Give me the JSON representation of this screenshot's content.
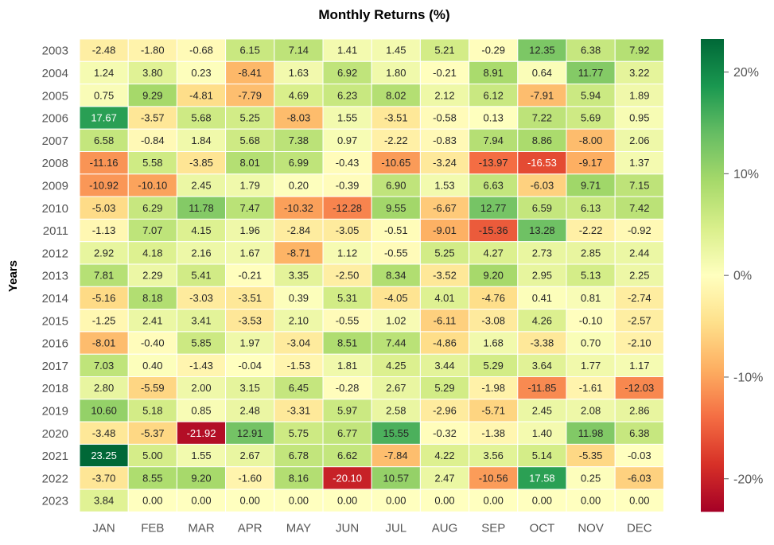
{
  "chart_data": {
    "type": "heatmap",
    "title": "Monthly Returns (%)",
    "xlabel": "",
    "ylabel": "Years",
    "columns": [
      "JAN",
      "FEB",
      "MAR",
      "APR",
      "MAY",
      "JUN",
      "JUL",
      "AUG",
      "SEP",
      "OCT",
      "NOV",
      "DEC"
    ],
    "rows": [
      "2003",
      "2004",
      "2005",
      "2006",
      "2007",
      "2008",
      "2009",
      "2010",
      "2011",
      "2012",
      "2013",
      "2014",
      "2015",
      "2016",
      "2017",
      "2018",
      "2019",
      "2020",
      "2021",
      "2022",
      "2023"
    ],
    "values": [
      [
        -2.48,
        -1.8,
        -0.68,
        6.15,
        7.14,
        1.41,
        1.45,
        5.21,
        -0.29,
        12.35,
        6.38,
        7.92
      ],
      [
        1.24,
        3.8,
        0.23,
        -8.41,
        1.63,
        6.92,
        1.8,
        -0.21,
        8.91,
        0.64,
        11.77,
        3.22
      ],
      [
        0.75,
        9.29,
        -4.81,
        -7.79,
        4.69,
        6.23,
        8.02,
        2.12,
        6.12,
        -7.91,
        5.94,
        1.89
      ],
      [
        17.67,
        -3.57,
        5.68,
        5.25,
        -8.03,
        1.55,
        -3.51,
        -0.58,
        0.13,
        7.22,
        5.69,
        0.95
      ],
      [
        6.58,
        -0.84,
        1.84,
        5.68,
        7.38,
        0.97,
        -2.22,
        -0.83,
        7.94,
        8.86,
        -8.0,
        2.06
      ],
      [
        -11.16,
        5.58,
        -3.85,
        8.01,
        6.99,
        -0.43,
        -10.65,
        -3.24,
        -13.97,
        -16.53,
        -9.17,
        1.37
      ],
      [
        -10.92,
        -10.1,
        2.45,
        1.79,
        0.2,
        -0.39,
        6.9,
        1.53,
        6.63,
        -6.03,
        9.71,
        7.15
      ],
      [
        -5.03,
        6.29,
        11.78,
        7.47,
        -10.32,
        -12.28,
        9.55,
        -6.67,
        12.77,
        6.59,
        6.13,
        7.42
      ],
      [
        -1.13,
        7.07,
        4.15,
        1.96,
        -2.84,
        -3.05,
        -0.51,
        -9.01,
        -15.36,
        13.28,
        -2.22,
        -0.92
      ],
      [
        2.92,
        4.18,
        2.16,
        1.67,
        -8.71,
        1.12,
        -0.55,
        5.25,
        4.27,
        2.73,
        2.85,
        2.44
      ],
      [
        7.81,
        2.29,
        5.41,
        -0.21,
        3.35,
        -2.5,
        8.34,
        -3.52,
        9.2,
        2.95,
        5.13,
        2.25
      ],
      [
        -5.16,
        8.18,
        -3.03,
        -3.51,
        0.39,
        5.31,
        -4.05,
        4.01,
        -4.76,
        0.41,
        0.81,
        -2.74
      ],
      [
        -1.25,
        2.41,
        3.41,
        -3.53,
        2.1,
        -0.55,
        1.02,
        -6.11,
        -3.08,
        4.26,
        -0.1,
        -2.57
      ],
      [
        -8.01,
        -0.4,
        5.85,
        1.97,
        -3.04,
        8.51,
        7.44,
        -4.86,
        1.68,
        -3.38,
        0.7,
        -2.1
      ],
      [
        7.03,
        0.4,
        -1.43,
        -0.04,
        -1.53,
        1.81,
        4.25,
        3.44,
        5.29,
        3.64,
        1.77,
        1.17
      ],
      [
        2.8,
        -5.59,
        2.0,
        3.15,
        6.45,
        -0.28,
        2.67,
        5.29,
        -1.98,
        -11.85,
        -1.61,
        -12.03
      ],
      [
        10.6,
        5.18,
        0.85,
        2.48,
        -3.31,
        5.97,
        2.58,
        -2.96,
        -5.71,
        2.45,
        2.08,
        2.86
      ],
      [
        -3.48,
        -5.37,
        -21.92,
        12.91,
        5.75,
        6.77,
        15.55,
        -0.32,
        -1.38,
        1.4,
        11.98,
        6.38
      ],
      [
        23.25,
        5.0,
        1.55,
        2.67,
        6.78,
        6.62,
        -7.84,
        4.22,
        3.56,
        5.14,
        -5.35,
        -0.03
      ],
      [
        -3.7,
        8.55,
        9.2,
        -1.6,
        8.16,
        -20.1,
        10.57,
        2.47,
        -10.56,
        17.58,
        0.25,
        -6.03
      ],
      [
        3.84,
        0.0,
        0.0,
        0.0,
        0.0,
        0.0,
        0.0,
        0.0,
        0.0,
        0.0,
        0.0,
        0.0
      ]
    ],
    "colorscale": "RdYlGn",
    "vmin": -23.25,
    "vmax": 23.25,
    "colorbar_ticks": [
      {
        "value": 20,
        "label": "20%"
      },
      {
        "value": 10,
        "label": "10%"
      },
      {
        "value": 0,
        "label": "0%"
      },
      {
        "value": -10,
        "label": "-10%"
      },
      {
        "value": -20,
        "label": "-20%"
      }
    ],
    "grid": false,
    "legend": "colorbar-right"
  }
}
